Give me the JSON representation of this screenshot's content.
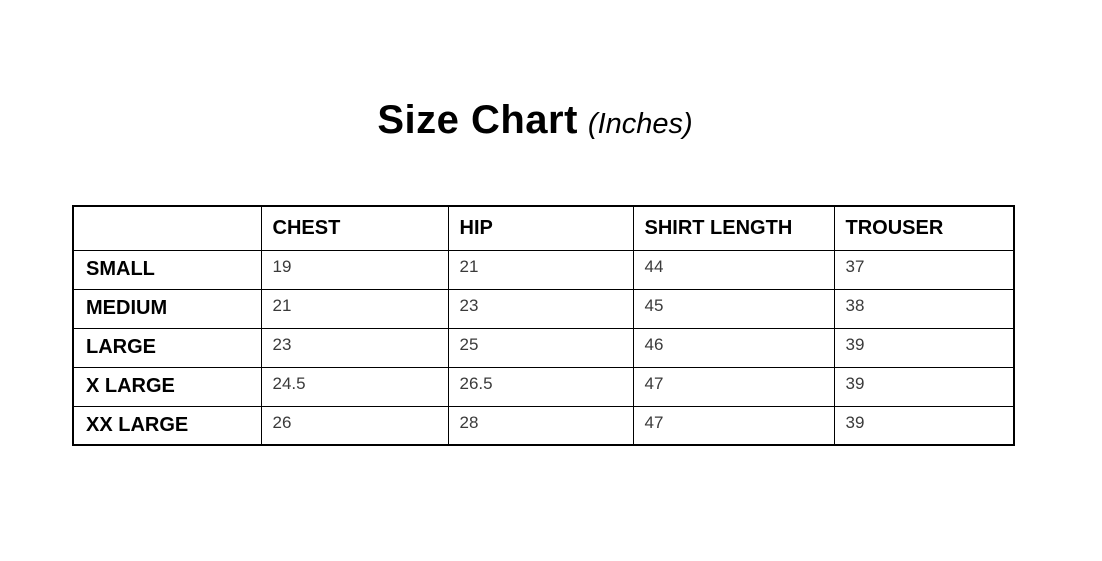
{
  "title": {
    "main": "Size Chart",
    "unit": "(Inches)"
  },
  "table": {
    "columns": [
      "",
      "CHEST",
      "HIP",
      "SHIRT LENGTH",
      "TROUSER"
    ],
    "rows": [
      {
        "label": "SMALL",
        "values": [
          "19",
          "21",
          "44",
          "37"
        ]
      },
      {
        "label": "MEDIUM",
        "values": [
          "21",
          "23",
          "45",
          "38"
        ]
      },
      {
        "label": "LARGE",
        "values": [
          "23",
          "25",
          "46",
          "39"
        ]
      },
      {
        "label": "X LARGE",
        "values": [
          "24.5",
          "26.5",
          "47",
          "39"
        ]
      },
      {
        "label": "XX LARGE",
        "values": [
          "26",
          "28",
          "47",
          "39"
        ]
      }
    ]
  },
  "chart_data": {
    "type": "table",
    "title": "Size Chart (Inches)",
    "unit": "Inches",
    "columns": [
      "CHEST",
      "HIP",
      "SHIRT LENGTH",
      "TROUSER"
    ],
    "categories": [
      "SMALL",
      "MEDIUM",
      "LARGE",
      "X LARGE",
      "XX LARGE"
    ],
    "series": [
      {
        "name": "CHEST",
        "values": [
          19,
          21,
          23,
          24.5,
          26
        ]
      },
      {
        "name": "HIP",
        "values": [
          21,
          23,
          25,
          26.5,
          28
        ]
      },
      {
        "name": "SHIRT LENGTH",
        "values": [
          44,
          45,
          46,
          47,
          47
        ]
      },
      {
        "name": "TROUSER",
        "values": [
          37,
          38,
          39,
          39,
          39
        ]
      }
    ]
  },
  "colors": {
    "background": "#ffffff",
    "border": "#000000",
    "heading_text": "#000000",
    "value_text": "#3a3a3a"
  }
}
